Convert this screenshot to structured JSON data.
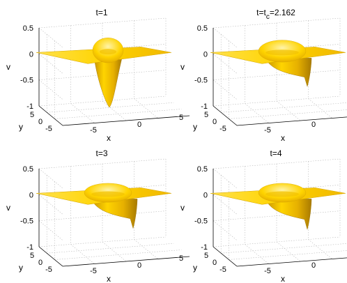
{
  "chart_data": [
    {
      "type": "surface",
      "title": "t=1",
      "xlabel": "x",
      "ylabel": "y",
      "zlabel": "v",
      "xticks": [
        "-5",
        "0",
        "5"
      ],
      "yticks": [
        "5",
        "0",
        "-5"
      ],
      "zticks": [
        "0.5",
        "0",
        "-0.5",
        "-1"
      ],
      "xlim": [
        -7,
        7
      ],
      "ylim": [
        -7,
        7
      ],
      "zlim": [
        -1,
        0.5
      ],
      "ring_peak": 0.12,
      "dip_min": -1.0,
      "color": "#ffd400",
      "grid": true
    },
    {
      "type": "surface",
      "title": "t=t",
      "title_sub": "c",
      "title_rest": "=2.162",
      "xlabel": "x",
      "ylabel": "y",
      "zlabel": "v",
      "xticks": [
        "-5",
        "0",
        "5"
      ],
      "yticks": [
        "5",
        "0",
        "-5"
      ],
      "zticks": [
        "0.5",
        "0",
        "-0.5",
        "-1"
      ],
      "xlim": [
        -7,
        7
      ],
      "ylim": [
        -7,
        7
      ],
      "zlim": [
        -1,
        0.5
      ],
      "ring_peak": 0.1,
      "dip_min": -0.6,
      "color": "#ffd400",
      "grid": true
    },
    {
      "type": "surface",
      "title": "t=3",
      "xlabel": "x",
      "ylabel": "y",
      "zlabel": "v",
      "xticks": [
        "-5",
        "0",
        "5"
      ],
      "yticks": [
        "5",
        "0",
        "-5"
      ],
      "zticks": [
        "0.5",
        "0",
        "-0.5",
        "-1"
      ],
      "xlim": [
        -7,
        7
      ],
      "ylim": [
        -7,
        7
      ],
      "zlim": [
        -1,
        0.5
      ],
      "ring_peak": 0.08,
      "dip_min": -0.62,
      "color": "#ffd400",
      "grid": true
    },
    {
      "type": "surface",
      "title": "t=4",
      "xlabel": "x",
      "ylabel": "y",
      "zlabel": "v",
      "xticks": [
        "-5",
        "0",
        "5"
      ],
      "yticks": [
        "5",
        "0",
        "-5"
      ],
      "zticks": [
        "0.5",
        "0",
        "-0.5",
        "-1"
      ],
      "xlim": [
        -7,
        7
      ],
      "ylim": [
        -7,
        7
      ],
      "zlim": [
        -1,
        0.5
      ],
      "ring_peak": 0.08,
      "dip_min": -0.64,
      "color": "#ffd400",
      "grid": true
    }
  ]
}
